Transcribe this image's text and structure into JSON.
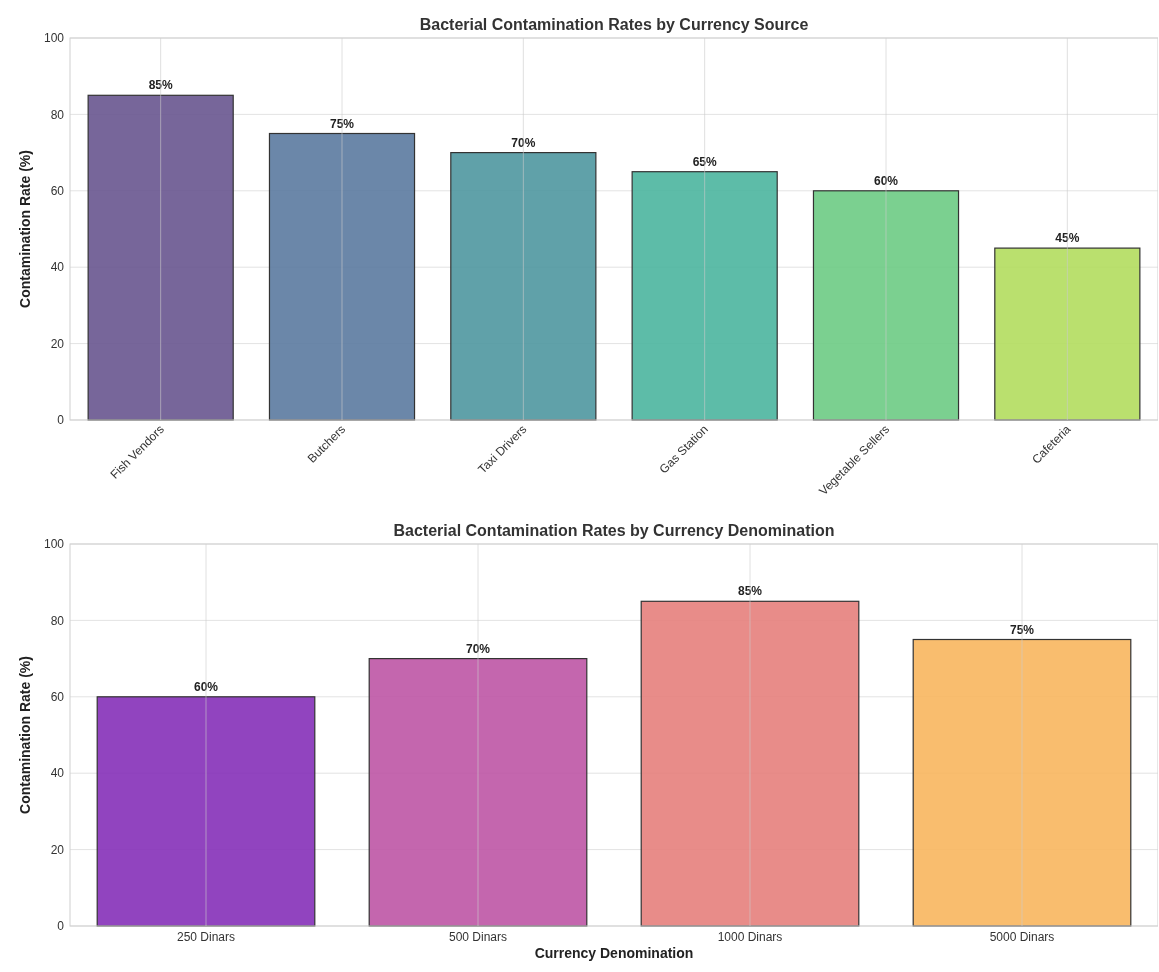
{
  "chart_data": [
    {
      "type": "bar",
      "title": "Bacterial Contamination Rates by Currency Source",
      "ylabel": "Contamination Rate (%)",
      "categories": [
        "Fish Vendors",
        "Butchers",
        "Taxi Drivers",
        "Gas Station",
        "Vegetable Sellers",
        "Cafeteria"
      ],
      "values": [
        85,
        75,
        70,
        65,
        60,
        45
      ],
      "colors": [
        "#68558f",
        "#5b7aa0",
        "#4f97a0",
        "#4bb59e",
        "#6dcb84",
        "#b2dd5e"
      ],
      "value_labels": [
        "85%",
        "75%",
        "70%",
        "65%",
        "60%",
        "45%"
      ],
      "ylim": [
        0,
        100
      ],
      "yticks": [
        0,
        20,
        40,
        60,
        80,
        100
      ],
      "grid": true
    },
    {
      "type": "bar",
      "title": "Bacterial Contamination Rates by Currency Denomination",
      "xlabel": "Currency Denomination",
      "ylabel": "Contamination Rate (%)",
      "categories": [
        "250 Dinars",
        "500 Dinars",
        "1000 Dinars",
        "5000 Dinars"
      ],
      "values": [
        60,
        70,
        85,
        75
      ],
      "colors": [
        "#8530b8",
        "#be55a5",
        "#e5807c",
        "#f8b65e"
      ],
      "value_labels": [
        "60%",
        "70%",
        "85%",
        "75%"
      ],
      "ylim": [
        0,
        100
      ],
      "yticks": [
        0,
        20,
        40,
        60,
        80,
        100
      ],
      "grid": true
    }
  ]
}
